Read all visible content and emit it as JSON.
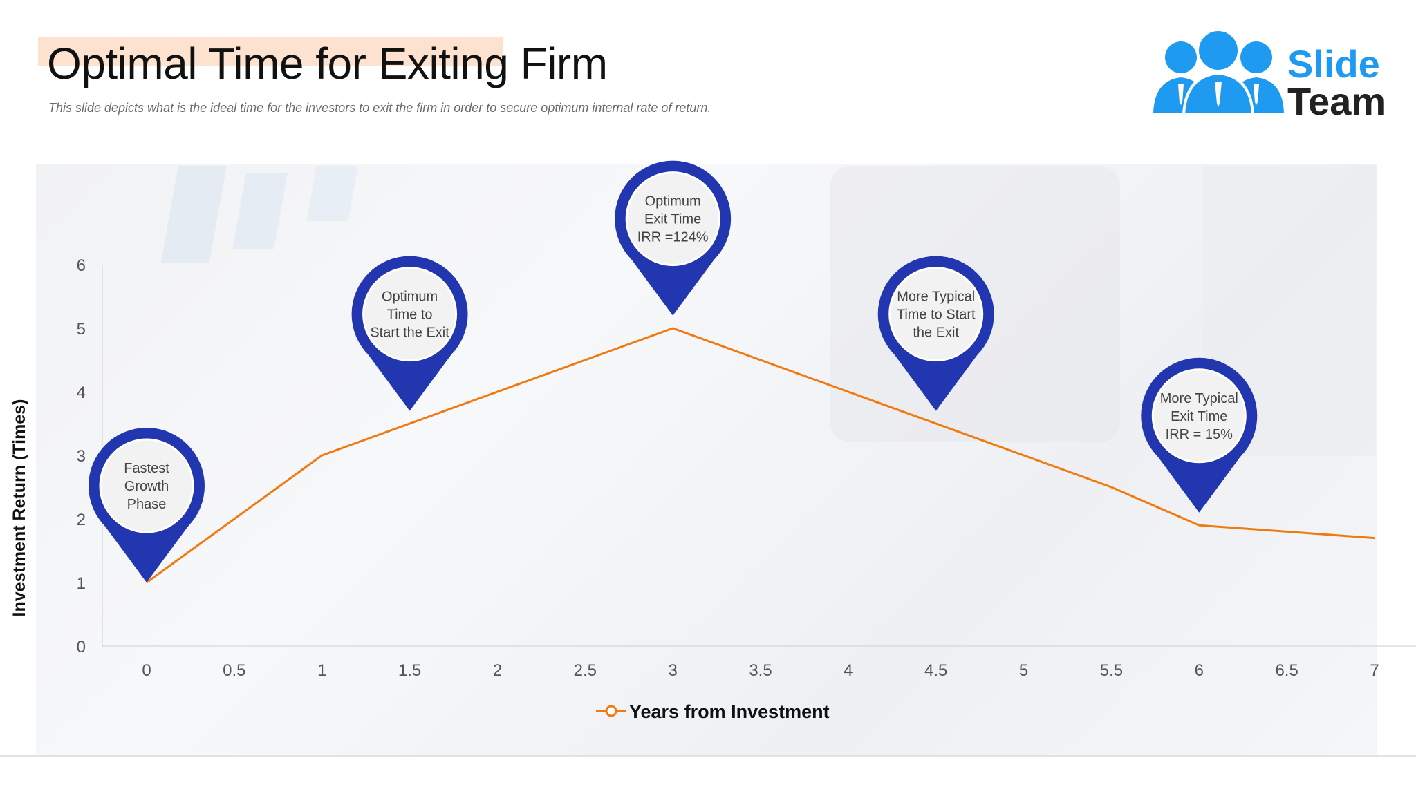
{
  "slide": {
    "title": "Optimal Time for Exiting Firm",
    "subtitle": "This slide depicts what is the ideal time for the investors to exit the firm in order to secure optimum internal rate of return."
  },
  "logo": {
    "line1": "Slide",
    "line2": "Team",
    "accent_color": "#1e9bf0",
    "text_color": "#222222",
    "icon": "team-people-icon"
  },
  "colors": {
    "line": "#f07a10",
    "pin": "#2236b0",
    "pin_inner": "#f2f2f2",
    "axis_text": "#555555"
  },
  "chart_data": {
    "type": "line",
    "xlabel": "Investment Return (Times)",
    "ylabel": "Investment Return (Times)",
    "legend": {
      "label": "Years from Investment",
      "position": "bottom"
    },
    "x_ticks": [
      "0",
      "0.5",
      "1",
      "1.5",
      "2",
      "2.5",
      "3",
      "3.5",
      "4",
      "4.5",
      "5",
      "5.5",
      "6",
      "6.5",
      "7"
    ],
    "y_ticks": [
      "0",
      "1",
      "2",
      "3",
      "4",
      "5",
      "6"
    ],
    "xlim": [
      0,
      7
    ],
    "ylim": [
      0,
      6
    ],
    "grid": false,
    "series": [
      {
        "x": [
          0,
          1,
          2,
          3,
          4,
          5,
          5.5,
          6,
          7
        ],
        "y": [
          1,
          3,
          4,
          5,
          4,
          3,
          2.5,
          1.9,
          1.7
        ]
      }
    ],
    "annotations": [
      {
        "x": 0,
        "y": 1,
        "lines": [
          "Fastest",
          "Growth",
          "Phase"
        ]
      },
      {
        "x": 1.5,
        "y": 3.7,
        "lines": [
          "Optimum",
          "Time to",
          "Start the Exit"
        ]
      },
      {
        "x": 3,
        "y": 5.2,
        "lines": [
          "Optimum",
          "Exit Time",
          "IRR =124%"
        ]
      },
      {
        "x": 4.5,
        "y": 3.7,
        "lines": [
          "More Typical",
          "Time to Start",
          "the Exit"
        ]
      },
      {
        "x": 6,
        "y": 2.1,
        "lines": [
          "More Typical",
          "Exit Time",
          "IRR = 15%"
        ]
      }
    ]
  }
}
